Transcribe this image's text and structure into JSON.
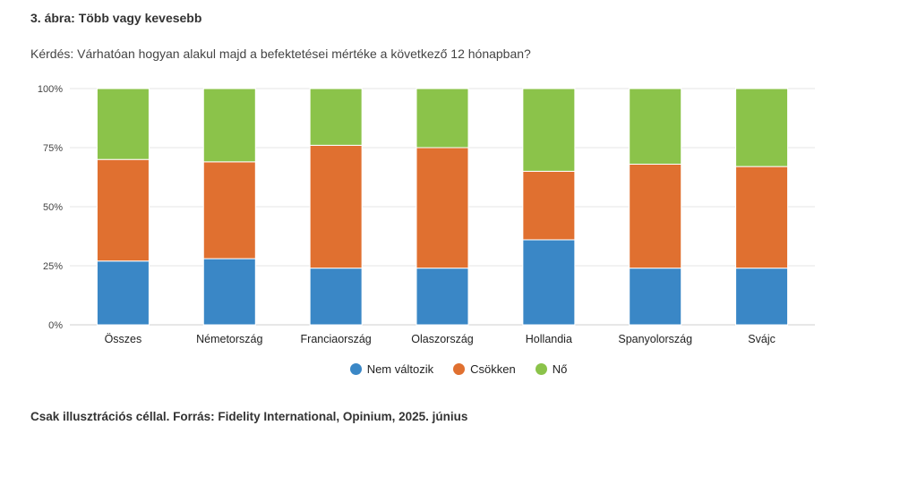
{
  "header": {
    "figure_title": "3. ábra: Több vagy kevesebb",
    "question": "Kérdés: Várhatóan hogyan alakul majd a befektetései mértéke a következő 12 hónapban?"
  },
  "footer": {
    "source": "Csak illusztrációs céllal. Forrás: Fidelity International, Opinium, 2025. június"
  },
  "chart_data": {
    "type": "bar",
    "stacked": true,
    "categories": [
      "Összes",
      "Németország",
      "Franciaország",
      "Olaszország",
      "Hollandia",
      "Spanyolország",
      "Svájc"
    ],
    "series": [
      {
        "name": "Nem változik",
        "color": "#3a87c6",
        "values": [
          27,
          28,
          24,
          24,
          36,
          24,
          24
        ]
      },
      {
        "name": "Csökken",
        "color": "#e07030",
        "values": [
          43,
          41,
          52,
          51,
          29,
          44,
          43
        ]
      },
      {
        "name": "Nő",
        "color": "#8bc34a",
        "values": [
          30,
          31,
          24,
          25,
          35,
          32,
          33
        ]
      }
    ],
    "yticks": [
      "0%",
      "25%",
      "50%",
      "75%",
      "100%"
    ],
    "ylim": [
      0,
      100
    ],
    "grid": true,
    "legend_position": "bottom"
  }
}
